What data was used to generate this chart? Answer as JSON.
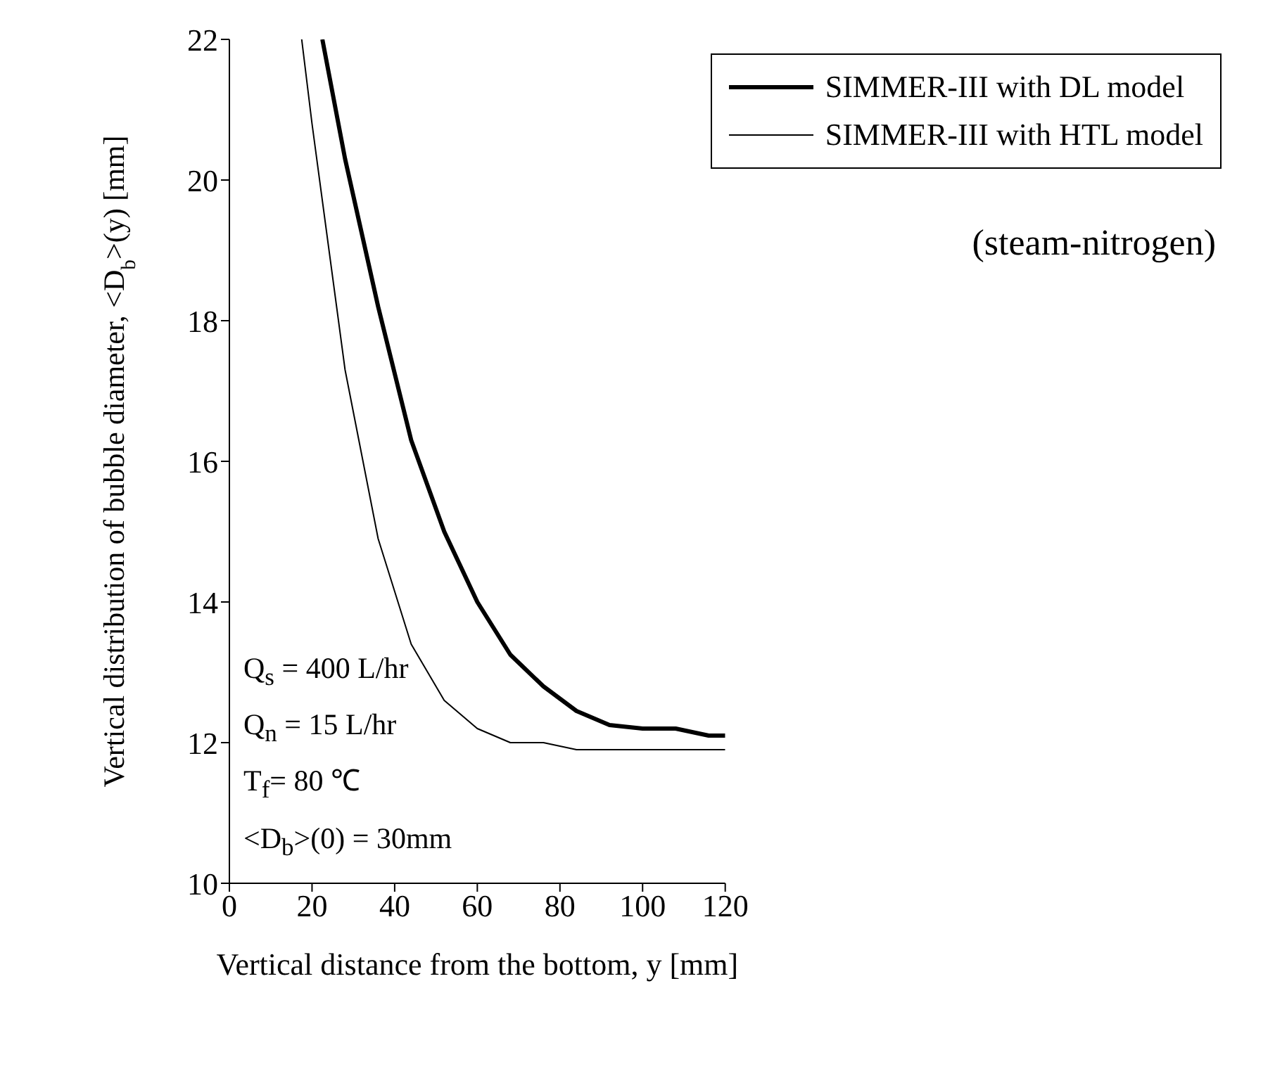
{
  "chart_data": {
    "type": "line",
    "xlabel": "Vertical distance from the bottom, y [mm]",
    "ylabel": "Vertical distribution of bubble diameter, <D$_{b}$>(y) [mm]",
    "series": [
      {
        "name": "SIMMER-III with DL model",
        "color": "#000000",
        "x": [
          22.5,
          28,
          36,
          44,
          52,
          60,
          68,
          76,
          84,
          92,
          100,
          108,
          116,
          120
        ],
        "values": [
          22,
          20.3,
          18.2,
          16.3,
          15.0,
          14.0,
          13.25,
          12.8,
          12.45,
          12.25,
          12.2,
          12.2,
          12.1,
          12.1
        ]
      },
      {
        "name": "SIMMER-III with HTL model",
        "color": "#000000",
        "x": [
          17.5,
          20,
          28,
          36,
          44,
          52,
          60,
          68,
          76,
          84,
          120
        ],
        "values": [
          22,
          20.8,
          17.3,
          14.9,
          13.4,
          12.6,
          12.2,
          12.0,
          12.0,
          11.9,
          11.9
        ]
      }
    ],
    "xlim": [
      0,
      120
    ],
    "xticks": [
      0,
      20,
      40,
      60,
      80,
      100,
      120
    ],
    "ylim": [
      10,
      22
    ],
    "yticks": [
      10,
      12,
      14,
      16,
      18,
      20,
      22
    ],
    "grid": false,
    "legend": "top right",
    "marker": "none",
    "line_style": "solid",
    "annotations": [
      "(steam-nitrogen)",
      "Q$_{s}$ = 400 L/hr",
      "Q$_{n}$ = 15 L/hr",
      "T$_{f}$= 80 ℃",
      "<D$_{b}$>(0) = 30mm"
    ]
  }
}
